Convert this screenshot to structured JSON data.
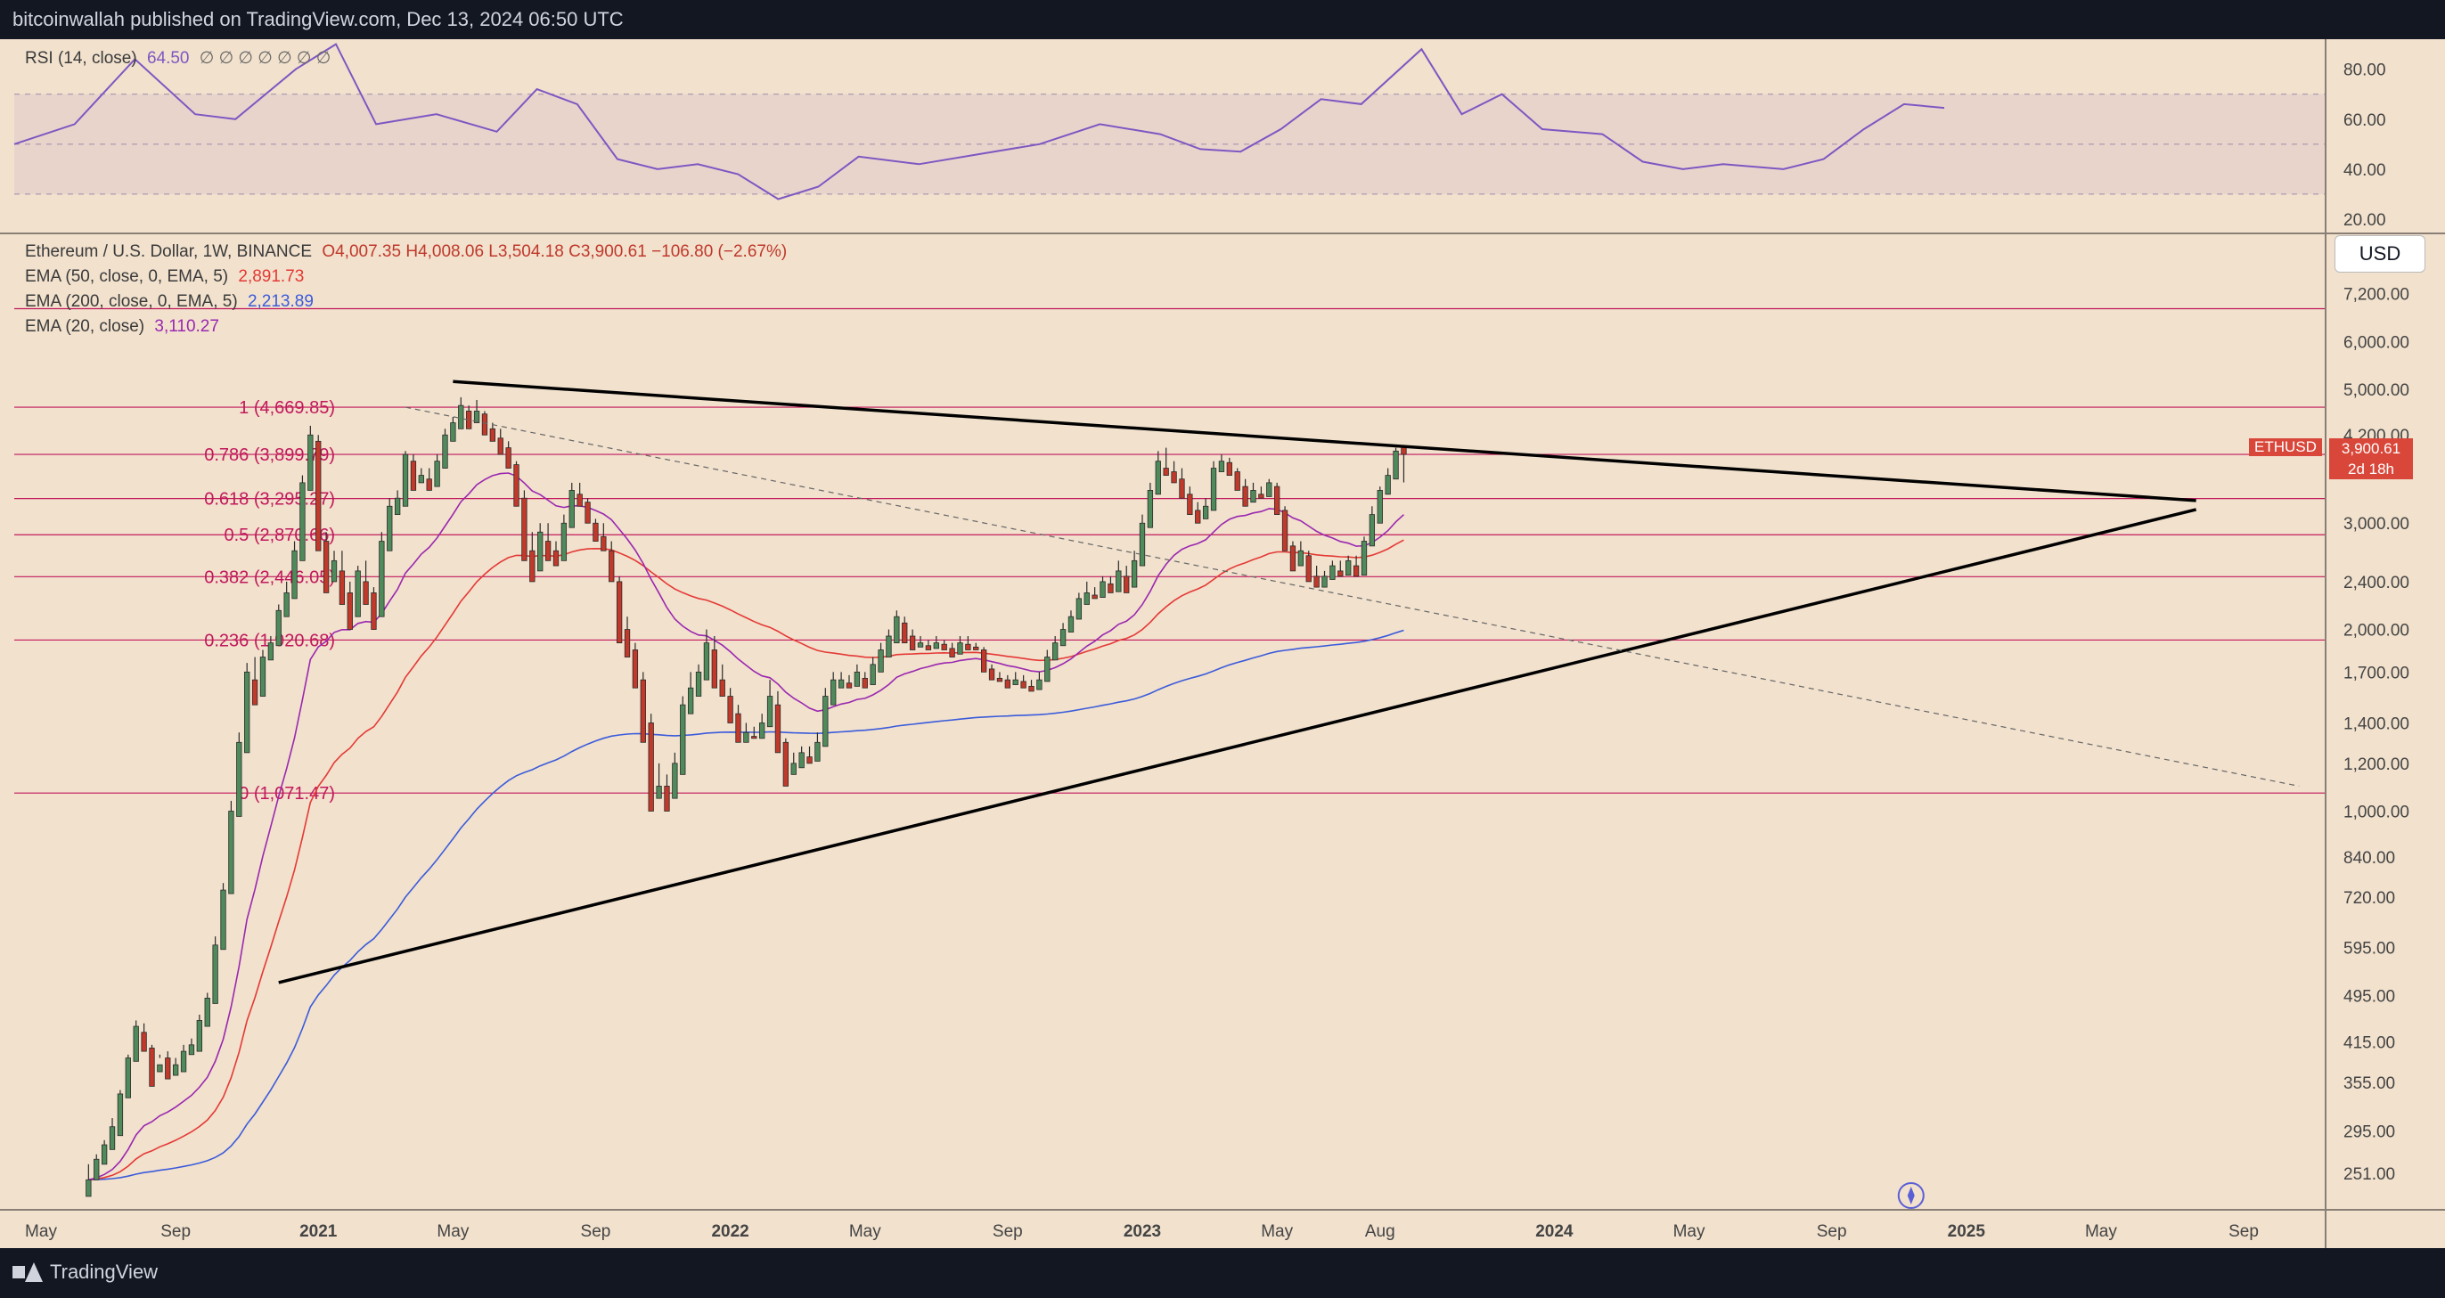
{
  "header": {
    "publisher_text": "bitcoinwallah published on TradingView.com, Dec 13, 2024 06:50 UTC"
  },
  "footer": {
    "brand": "TradingView"
  },
  "legend": {
    "symbol_line": "Ethereum / U.S. Dollar, 1W, BINANCE",
    "ohlc": "O4,007.35  H4,008.06  L3,504.18  C3,900.61  −106.80 (−2.67%)",
    "ema50_label": "EMA (50, close, 0, EMA, 5)",
    "ema50_value": "2,891.73",
    "ema200_label": "EMA (200, close, 0, EMA, 5)",
    "ema200_value": "2,213.89",
    "ema20_label": "EMA (20, close)",
    "ema20_value": "3,110.27",
    "rsi_label": "RSI (14, close)",
    "rsi_value": "64.50",
    "rsi_extra": "∅ ∅ ∅ ∅ ∅ ∅ ∅"
  },
  "price_axis": {
    "unit": "USD"
  },
  "last_price": {
    "ticker": "ETHUSD",
    "price": "3,900.61",
    "countdown": "2d 18h"
  },
  "colors": {
    "background": "#f1e1cd",
    "up_candle": "#4f8a5b",
    "down_candle": "#c0392b",
    "ema20": "#9b27b0",
    "ema50": "#e53935",
    "ema200": "#3b5bdb",
    "rsi_line": "#7e57c2",
    "fib_line": "#c2185b",
    "trendline": "#000000"
  },
  "chart_data": [
    {
      "type": "line",
      "title": "RSI (14, close)",
      "ylim": [
        15,
        92
      ],
      "ticks": [
        "80.00",
        "60.00",
        "40.00",
        "20.00"
      ],
      "tick_values": [
        80,
        60,
        40,
        20
      ],
      "bands": [
        70,
        50,
        30
      ],
      "series": [
        {
          "name": "RSI (14, close)",
          "x": [
            0,
            6,
            12,
            18,
            22,
            28,
            32,
            36,
            42,
            48,
            52,
            56,
            60,
            64,
            68,
            72,
            76,
            80,
            84,
            90,
            96,
            102,
            108,
            114,
            118,
            122,
            126,
            130,
            134,
            140,
            144,
            148,
            152,
            158,
            162,
            166,
            170,
            176,
            180,
            184,
            188,
            192
          ],
          "values": [
            50,
            58,
            84,
            62,
            60,
            80,
            90,
            58,
            62,
            55,
            72,
            66,
            44,
            40,
            42,
            38,
            28,
            33,
            45,
            42,
            46,
            50,
            58,
            54,
            48,
            47,
            56,
            68,
            66,
            88,
            62,
            70,
            56,
            54,
            43,
            40,
            42,
            40,
            44,
            56,
            66,
            64.5
          ]
        }
      ]
    },
    {
      "type": "candlestick",
      "title": "Ethereum / U.S. Dollar, 1W, BINANCE",
      "y_scale": "log",
      "ylim": [
        220,
        9000
      ],
      "ticks": [
        "7,200.00",
        "6,000.00",
        "5,000.00",
        "4,200.00",
        "3,000.00",
        "2,400.00",
        "2,000.00",
        "1,700.00",
        "1,400.00",
        "1,200.00",
        "1,000.00",
        "840.00",
        "720.00",
        "595.00",
        "495.00",
        "415.00",
        "355.00",
        "295.00",
        "251.00"
      ],
      "tick_values": [
        7200,
        6000,
        5000,
        4200,
        3000,
        2400,
        2000,
        1700,
        1400,
        1200,
        1000,
        840,
        720,
        595,
        495,
        415,
        355,
        295,
        251
      ],
      "x_ticks": [
        "May",
        "Sep",
        "2021",
        "May",
        "Sep",
        "2022",
        "May",
        "Sep",
        "2023",
        "May",
        "Aug",
        "2024",
        "May",
        "Sep",
        "2025",
        "May",
        "Sep"
      ],
      "x_tick_weeks": [
        0,
        17,
        35,
        52,
        70,
        87,
        104,
        122,
        139,
        156,
        169,
        191,
        208,
        226,
        243,
        260,
        278
      ],
      "bold_ticks": [
        "2021",
        "2022",
        "2023",
        "2024",
        "2025"
      ],
      "fibonacci": [
        {
          "label": "1 (4,669.85)",
          "price": 4669.85
        },
        {
          "label": "0.786 (3,899.79)",
          "price": 3899.79
        },
        {
          "label": "0.618 (3,295.27)",
          "price": 3295.27
        },
        {
          "label": "0.5 (2,870.66)",
          "price": 2870.66
        },
        {
          "label": "0.382 (2,446.05)",
          "price": 2446.05
        },
        {
          "label": "0.236 (1,920.68)",
          "price": 1920.68
        },
        {
          "label": "0 (1,071.47)",
          "price": 1071.47
        }
      ],
      "extra_hline": 6800,
      "trendlines": [
        {
          "x": [
            52,
            272
          ],
          "y": [
            5150,
            3270
          ]
        },
        {
          "x": [
            30,
            272
          ],
          "y": [
            520,
            3160
          ]
        },
        {
          "x": [
            46,
            285
          ],
          "y": [
            4669,
            1100
          ],
          "dashed": true
        }
      ],
      "candles_weeks_start": 6,
      "candles": [
        [
          230,
          245,
          240,
          260
        ],
        [
          245,
          265,
          260,
          270
        ],
        [
          260,
          280,
          275,
          285
        ],
        [
          275,
          300,
          290,
          310
        ],
        [
          290,
          340,
          335,
          345
        ],
        [
          335,
          390,
          385,
          395
        ],
        [
          385,
          440,
          430,
          450
        ],
        [
          430,
          400,
          405,
          445
        ],
        [
          405,
          350,
          370,
          410
        ],
        [
          370,
          380,
          390,
          395
        ],
        [
          390,
          360,
          365,
          400
        ],
        [
          365,
          380,
          370,
          390
        ],
        [
          370,
          400,
          395,
          410
        ],
        [
          395,
          410,
          400,
          420
        ],
        [
          400,
          450,
          440,
          460
        ],
        [
          440,
          490,
          480,
          500
        ],
        [
          480,
          600,
          590,
          620
        ],
        [
          590,
          740,
          730,
          760
        ],
        [
          730,
          1000,
          980,
          1040
        ],
        [
          980,
          1300,
          1250,
          1350
        ],
        [
          1250,
          1700,
          1650,
          1760
        ],
        [
          1650,
          1500,
          1550,
          1800
        ],
        [
          1550,
          1800,
          1780,
          1850
        ],
        [
          1780,
          1900,
          1880,
          1950
        ],
        [
          1880,
          2150,
          2100,
          2200
        ],
        [
          2100,
          2300,
          2250,
          2400
        ],
        [
          2250,
          2700,
          2600,
          2800
        ],
        [
          2600,
          3500,
          3400,
          3600
        ],
        [
          3400,
          4200,
          4100,
          4350
        ],
        [
          4100,
          2700,
          2800,
          4200
        ],
        [
          2800,
          2300,
          2400,
          2900
        ],
        [
          2400,
          2600,
          2500,
          2700
        ],
        [
          2500,
          2200,
          2300,
          2700
        ],
        [
          2300,
          2000,
          2100,
          2400
        ],
        [
          2100,
          2500,
          2400,
          2550
        ],
        [
          2400,
          2200,
          2300,
          2600
        ],
        [
          2300,
          2000,
          2100,
          2350
        ],
        [
          2100,
          2800,
          2700,
          2900
        ],
        [
          2700,
          3200,
          3100,
          3300
        ],
        [
          3100,
          3300,
          3200,
          3400
        ],
        [
          3200,
          3900,
          3800,
          3950
        ],
        [
          3800,
          3400,
          3500,
          3900
        ],
        [
          3500,
          3600,
          3550,
          3700
        ],
        [
          3550,
          3400,
          3450,
          3700
        ],
        [
          3450,
          3800,
          3700,
          3900
        ],
        [
          3700,
          4200,
          4100,
          4300
        ],
        [
          4100,
          4400,
          4300,
          4500
        ],
        [
          4300,
          4700,
          4600,
          4850
        ],
        [
          4600,
          4300,
          4400,
          4700
        ],
        [
          4400,
          4600,
          4550,
          4800
        ],
        [
          4550,
          4200,
          4300,
          4600
        ],
        [
          4300,
          4100,
          4150,
          4400
        ],
        [
          4150,
          3900,
          4000,
          4300
        ],
        [
          4000,
          3700,
          3750,
          4100
        ],
        [
          3750,
          3200,
          3300,
          3800
        ],
        [
          3300,
          2600,
          2700,
          3400
        ],
        [
          2700,
          2400,
          2500,
          2900
        ],
        [
          2500,
          2900,
          2800,
          3000
        ],
        [
          2800,
          2600,
          2700,
          3000
        ],
        [
          2700,
          2550,
          2600,
          2800
        ],
        [
          2600,
          3000,
          2950,
          3100
        ],
        [
          2950,
          3400,
          3350,
          3500
        ],
        [
          3350,
          3200,
          3250,
          3500
        ],
        [
          3250,
          3000,
          3000,
          3300
        ],
        [
          3000,
          2800,
          2850,
          3050
        ],
        [
          2850,
          2700,
          2700,
          3000
        ],
        [
          2700,
          2400,
          2400,
          2800
        ],
        [
          2400,
          1900,
          2000,
          2450
        ],
        [
          2000,
          1800,
          1850,
          2100
        ],
        [
          1850,
          1600,
          1650,
          1900
        ],
        [
          1650,
          1300,
          1400,
          1700
        ],
        [
          1400,
          1000,
          1050,
          1450
        ],
        [
          1050,
          1100,
          1100,
          1200
        ],
        [
          1100,
          1000,
          1050,
          1150
        ],
        [
          1050,
          1200,
          1150,
          1250
        ],
        [
          1150,
          1500,
          1450,
          1550
        ],
        [
          1450,
          1600,
          1550,
          1700
        ],
        [
          1550,
          1700,
          1650,
          1750
        ],
        [
          1650,
          1900,
          1850,
          2000
        ],
        [
          1850,
          1600,
          1650,
          1950
        ],
        [
          1650,
          1550,
          1550,
          1750
        ],
        [
          1550,
          1400,
          1450,
          1600
        ],
        [
          1450,
          1300,
          1300,
          1500
        ],
        [
          1300,
          1350,
          1330,
          1400
        ],
        [
          1330,
          1320,
          1320,
          1380
        ],
        [
          1320,
          1400,
          1380,
          1450
        ],
        [
          1380,
          1550,
          1500,
          1650
        ],
        [
          1500,
          1250,
          1300,
          1580
        ],
        [
          1300,
          1100,
          1150,
          1320
        ],
        [
          1150,
          1200,
          1180,
          1250
        ],
        [
          1180,
          1250,
          1230,
          1280
        ],
        [
          1230,
          1200,
          1210,
          1280
        ],
        [
          1210,
          1300,
          1280,
          1350
        ],
        [
          1280,
          1550,
          1500,
          1600
        ],
        [
          1500,
          1650,
          1600,
          1700
        ],
        [
          1600,
          1650,
          1630,
          1700
        ],
        [
          1630,
          1600,
          1610,
          1680
        ],
        [
          1610,
          1700,
          1660,
          1750
        ],
        [
          1660,
          1600,
          1620,
          1700
        ],
        [
          1620,
          1750,
          1700,
          1800
        ],
        [
          1700,
          1850,
          1800,
          1900
        ],
        [
          1800,
          1950,
          1900,
          2000
        ],
        [
          1900,
          2100,
          2050,
          2150
        ],
        [
          2050,
          1900,
          1950,
          2100
        ],
        [
          1950,
          1850,
          1870,
          2000
        ],
        [
          1870,
          1900,
          1880,
          1950
        ],
        [
          1880,
          1850,
          1860,
          1920
        ],
        [
          1860,
          1900,
          1890,
          1950
        ],
        [
          1890,
          1850,
          1860,
          1920
        ],
        [
          1860,
          1800,
          1820,
          1900
        ],
        [
          1820,
          1900,
          1890,
          1950
        ],
        [
          1890,
          1850,
          1870,
          1950
        ],
        [
          1870,
          1850,
          1850,
          1900
        ],
        [
          1850,
          1700,
          1720,
          1870
        ],
        [
          1720,
          1650,
          1660,
          1750
        ],
        [
          1660,
          1640,
          1650,
          1700
        ],
        [
          1650,
          1600,
          1620,
          1680
        ],
        [
          1620,
          1650,
          1640,
          1700
        ],
        [
          1640,
          1600,
          1610,
          1680
        ],
        [
          1610,
          1580,
          1590,
          1650
        ],
        [
          1590,
          1650,
          1640,
          1700
        ],
        [
          1640,
          1800,
          1780,
          1850
        ],
        [
          1780,
          1900,
          1880,
          1950
        ],
        [
          1880,
          2000,
          1980,
          2050
        ],
        [
          1980,
          2100,
          2080,
          2150
        ],
        [
          2080,
          2250,
          2200,
          2300
        ],
        [
          2200,
          2300,
          2280,
          2400
        ],
        [
          2280,
          2250,
          2260,
          2350
        ],
        [
          2260,
          2400,
          2380,
          2450
        ],
        [
          2380,
          2300,
          2310,
          2450
        ],
        [
          2310,
          2500,
          2450,
          2600
        ],
        [
          2450,
          2300,
          2350,
          2550
        ],
        [
          2350,
          2600,
          2550,
          2700
        ],
        [
          2550,
          3000,
          2950,
          3100
        ],
        [
          2950,
          3400,
          3350,
          3500
        ],
        [
          3350,
          3800,
          3700,
          3950
        ],
        [
          3700,
          3600,
          3650,
          4000
        ],
        [
          3650,
          3500,
          3550,
          3800
        ],
        [
          3550,
          3300,
          3350,
          3700
        ],
        [
          3350,
          3100,
          3150,
          3450
        ],
        [
          3150,
          3000,
          3050,
          3250
        ],
        [
          3050,
          3200,
          3150,
          3300
        ],
        [
          3150,
          3700,
          3650,
          3800
        ],
        [
          3650,
          3800,
          3780,
          3900
        ],
        [
          3780,
          3600,
          3650,
          3850
        ],
        [
          3650,
          3400,
          3450,
          3700
        ],
        [
          3450,
          3200,
          3250,
          3550
        ],
        [
          3250,
          3400,
          3350,
          3500
        ],
        [
          3350,
          3300,
          3320,
          3450
        ],
        [
          3320,
          3500,
          3450,
          3550
        ],
        [
          3450,
          3100,
          3150,
          3500
        ],
        [
          3150,
          2700,
          2750,
          3200
        ],
        [
          2750,
          2500,
          2550,
          2800
        ],
        [
          2550,
          2700,
          2650,
          2800
        ],
        [
          2650,
          2400,
          2450,
          2700
        ],
        [
          2450,
          2350,
          2350,
          2550
        ],
        [
          2350,
          2450,
          2420,
          2500
        ],
        [
          2420,
          2550,
          2500,
          2600
        ],
        [
          2500,
          2450,
          2460,
          2600
        ],
        [
          2460,
          2600,
          2550,
          2650
        ],
        [
          2550,
          2450,
          2460,
          2650
        ],
        [
          2460,
          2800,
          2750,
          2850
        ],
        [
          2750,
          3100,
          3000,
          3200
        ],
        [
          3000,
          3400,
          3350,
          3450
        ],
        [
          3350,
          3600,
          3550,
          3700
        ],
        [
          3550,
          3950,
          3900,
          4000
        ],
        [
          4007.35,
          3900.61,
          3504.18,
          4008.06
        ]
      ]
    }
  ]
}
